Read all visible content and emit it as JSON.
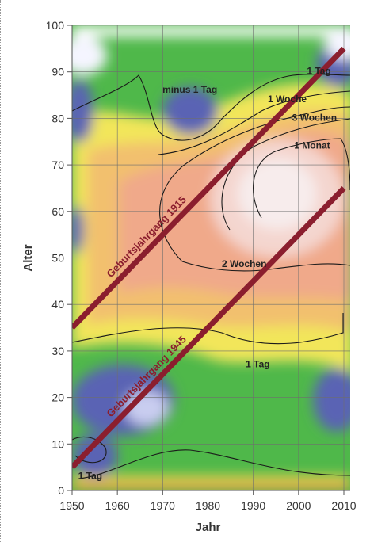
{
  "chart_data": {
    "type": "heatmap",
    "xlabel": "Jahr",
    "ylabel": "Alter",
    "xlim": [
      1950,
      2010
    ],
    "ylim": [
      0,
      100
    ],
    "x_ticks": [
      "1950",
      "1960",
      "1970",
      "1980",
      "1990",
      "2000",
      "2010"
    ],
    "y_ticks": [
      "0",
      "10",
      "20",
      "30",
      "40",
      "50",
      "60",
      "70",
      "80",
      "90",
      "100"
    ],
    "grid": true,
    "colors": {
      "low": "#5a64b4",
      "mid_low": "#47b847",
      "mid": "#f1ea5a",
      "high": "#f3b07c",
      "max": "#f5e4e4",
      "cohort_line": "#8b1e2e"
    },
    "contour_labels": [
      {
        "text": "minus 1 Tag",
        "x": 1976,
        "y": 85.5
      },
      {
        "text": "1 Tag",
        "x": 2004.5,
        "y": 89.5
      },
      {
        "text": "1 Woche",
        "x": 1997.5,
        "y": 83.5
      },
      {
        "text": "3 Wochen",
        "x": 2003.5,
        "y": 79.5
      },
      {
        "text": "1 Monat",
        "x": 2003,
        "y": 73.5
      },
      {
        "text": "2 Wochen",
        "x": 1988,
        "y": 48
      },
      {
        "text": "1 Tag",
        "x": 1991,
        "y": 26.5
      },
      {
        "text": "1 Tag",
        "x": 1954,
        "y": 2.5
      }
    ],
    "cohorts": [
      {
        "label": "Geburtsjahrgang 1915",
        "x": [
          1950,
          2010
        ],
        "y": [
          35,
          95
        ]
      },
      {
        "label": "Geburtsjahrgang 1945",
        "x": [
          1950,
          2010
        ],
        "y": [
          5,
          65
        ]
      }
    ]
  }
}
